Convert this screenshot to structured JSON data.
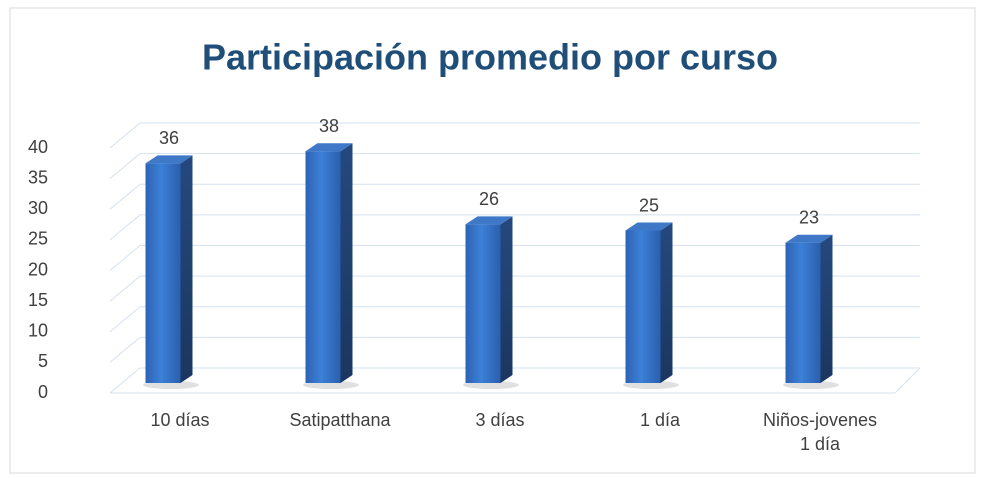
{
  "chart_data": {
    "type": "bar3d",
    "title": "Participación promedio por curso",
    "categories": [
      "10 días",
      "Satipatthana",
      "3 días",
      "1 día",
      "Niños-jovenes\n1 día"
    ],
    "values": [
      36,
      38,
      26,
      25,
      23
    ],
    "color": "#2e6bc4",
    "ylim": [
      0,
      40
    ],
    "yticks": [
      0,
      5,
      10,
      15,
      20,
      25,
      30,
      35,
      40
    ],
    "grid": true
  }
}
